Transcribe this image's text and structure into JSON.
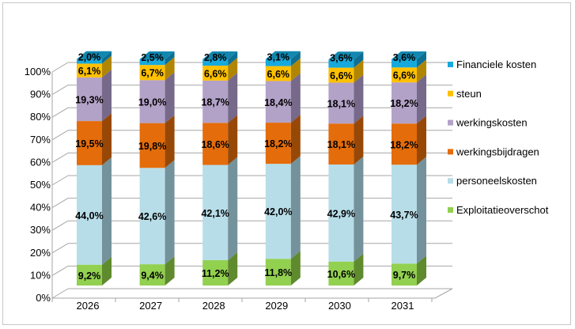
{
  "chart_data": {
    "type": "bar",
    "stacked": true,
    "percent": true,
    "three_d": true,
    "title": "",
    "xlabel": "",
    "ylabel": "",
    "ylim": [
      0,
      100
    ],
    "yticks": [
      "0%",
      "10%",
      "20%",
      "30%",
      "40%",
      "50%",
      "60%",
      "70%",
      "80%",
      "90%",
      "100%"
    ],
    "categories": [
      "2026",
      "2027",
      "2028",
      "2029",
      "2030",
      "2031"
    ],
    "legend_position": "right",
    "grid": true,
    "series": [
      {
        "name": "Exploitatieoverschot",
        "color": "#92d050",
        "side": "#5f8a2e",
        "values": [
          9.2,
          9.4,
          11.2,
          11.8,
          10.6,
          9.7
        ],
        "labels": [
          "9,2%",
          "9,4%",
          "11,2%",
          "11,8%",
          "10,6%",
          "9,7%"
        ]
      },
      {
        "name": "personeelskosten",
        "color": "#b7dde8",
        "side": "#74929b",
        "values": [
          44.0,
          42.6,
          42.1,
          42.0,
          42.9,
          43.7
        ],
        "labels": [
          "44,0%",
          "42,6%",
          "42,1%",
          "42,0%",
          "42,9%",
          "43,7%"
        ]
      },
      {
        "name": "werkingsbijdragen",
        "color": "#e46c0a",
        "side": "#984806",
        "values": [
          19.5,
          19.8,
          18.6,
          18.2,
          18.1,
          18.2
        ],
        "labels": [
          "19,5%",
          "19,8%",
          "18,6%",
          "18,2%",
          "18,1%",
          "18,2%"
        ]
      },
      {
        "name": "werkingskosten",
        "color": "#b3a2c7",
        "side": "#76698a",
        "values": [
          19.3,
          19.0,
          18.7,
          18.4,
          18.1,
          18.2
        ],
        "labels": [
          "19,3%",
          "19,0%",
          "18,7%",
          "18,4%",
          "18,1%",
          "18,2%"
        ]
      },
      {
        "name": "steun",
        "color": "#ffc000",
        "side": "#b08600",
        "values": [
          6.1,
          6.7,
          6.6,
          6.6,
          6.6,
          6.6
        ],
        "labels": [
          "6,1%",
          "6,7%",
          "6,6%",
          "6,6%",
          "6,6%",
          "6,6%"
        ]
      },
      {
        "name": "Financiele kosten",
        "color": "#17a9dc",
        "side": "#0e6f92",
        "values": [
          2.0,
          2.5,
          2.8,
          3.1,
          3.6,
          3.6
        ],
        "labels": [
          "2,0%",
          "2,5%",
          "2,8%",
          "3,1%",
          "3,6%",
          "3,6%"
        ]
      }
    ]
  }
}
